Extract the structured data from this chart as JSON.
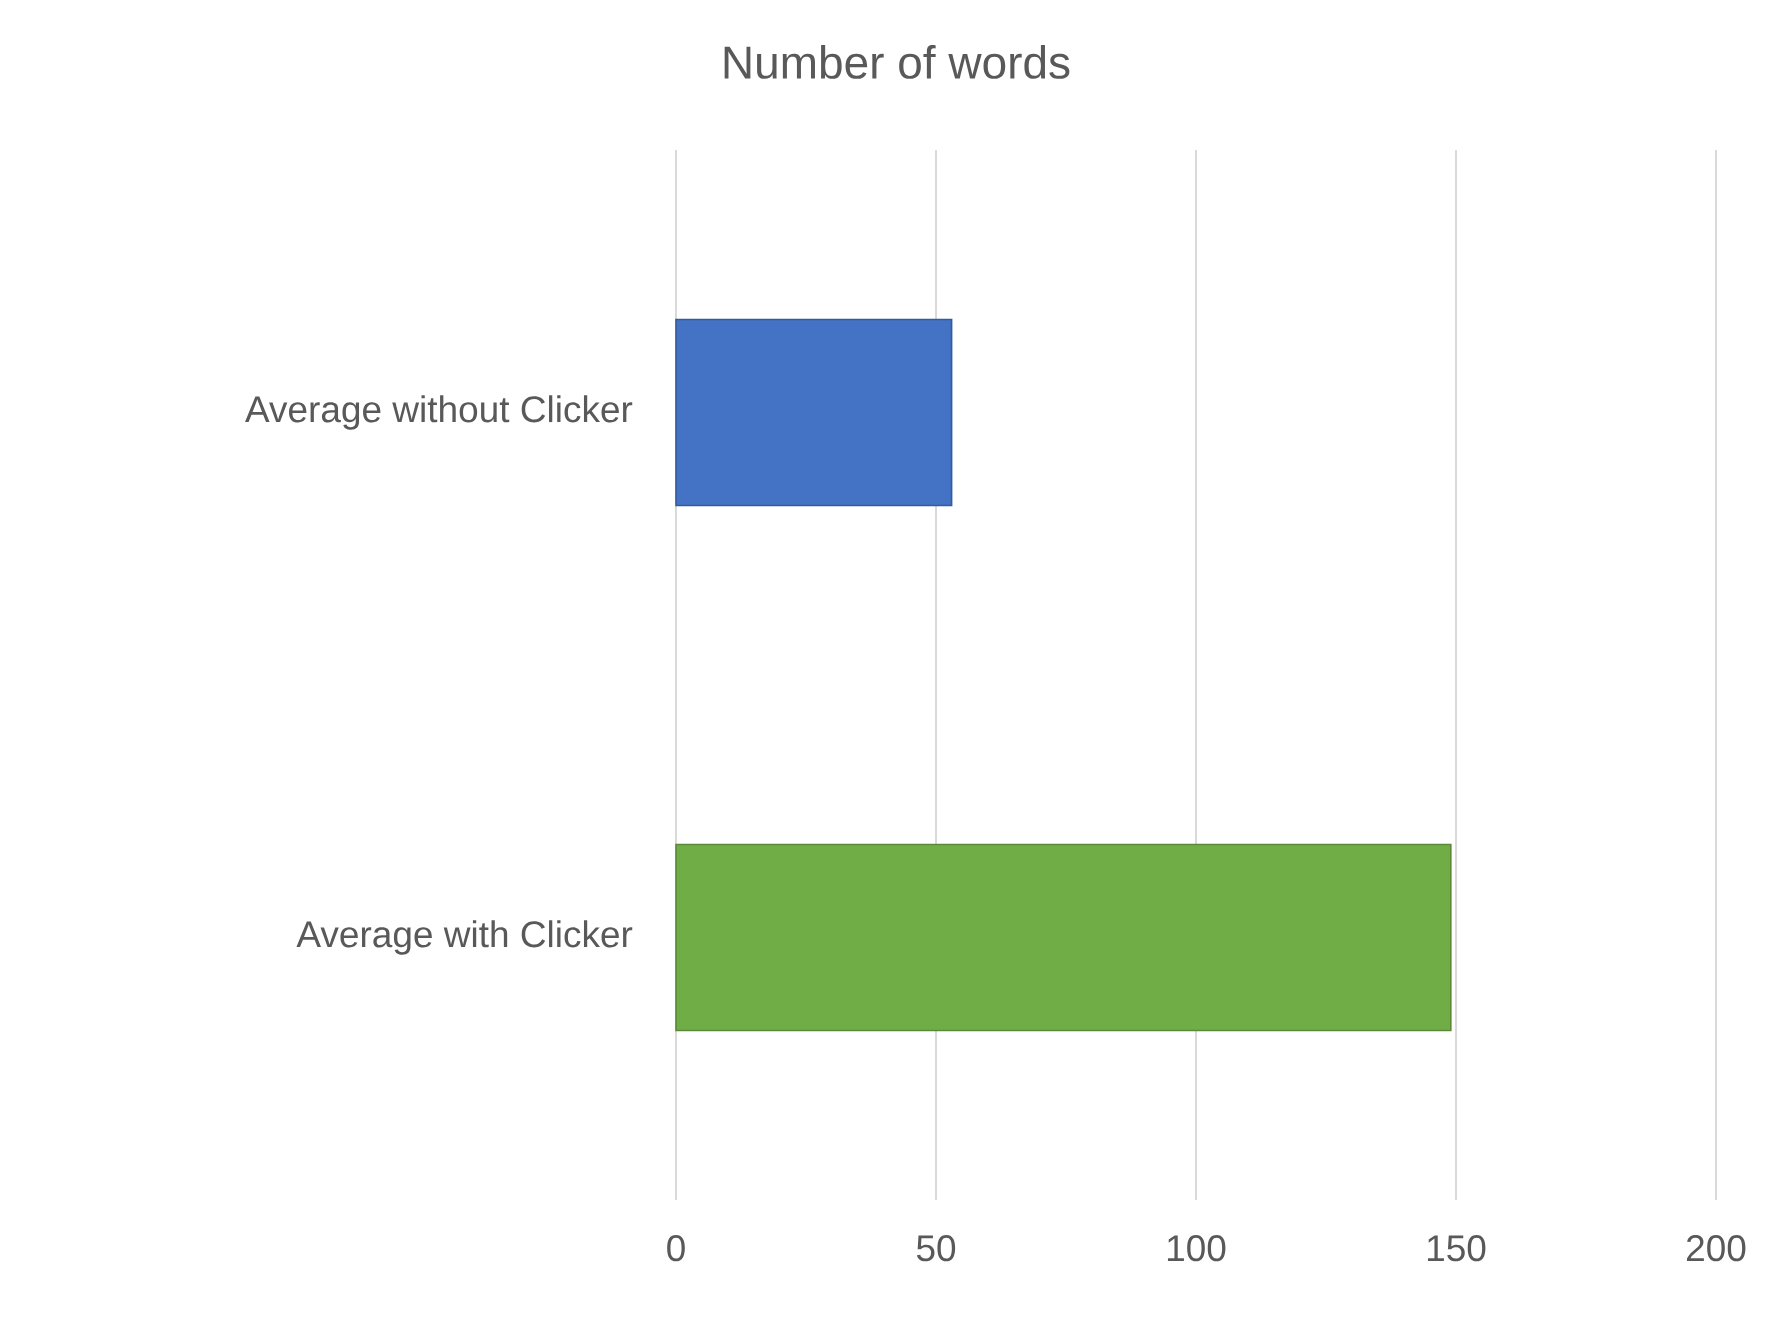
{
  "chart_data": {
    "type": "bar",
    "orientation": "horizontal",
    "title": "Number of words",
    "categories": [
      "Average without Clicker",
      "Average with Clicker"
    ],
    "values": [
      53,
      149
    ],
    "colors": [
      "#4472c4",
      "#70ad47"
    ],
    "xlim": [
      0,
      200
    ],
    "xticks": [
      0,
      50,
      100,
      150,
      200
    ],
    "grid": "x"
  }
}
